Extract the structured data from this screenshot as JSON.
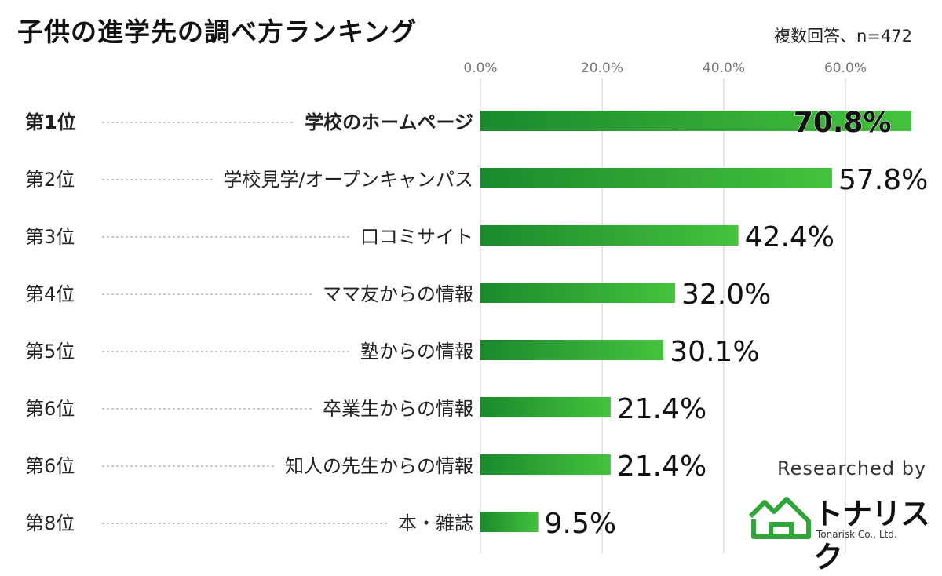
{
  "header": {
    "title": "子供の進学先の調べ方ランキング",
    "note": "複数回答、n=472"
  },
  "chart_data": {
    "type": "bar",
    "orientation": "horizontal",
    "title": "子供の進学先の調べ方ランキング",
    "xlim": [
      0,
      70
    ],
    "x_ticks": [
      "0.0%",
      "20.0%",
      "40.0%",
      "60.0%"
    ],
    "x_tick_values": [
      0,
      20,
      40,
      60
    ],
    "grid": true,
    "ranks": [
      "第1位",
      "第2位",
      "第3位",
      "第4位",
      "第5位",
      "第6位",
      "第6位",
      "第8位"
    ],
    "categories": [
      "学校のホームページ",
      "学校見学/オープンキャンパス",
      "口コミサイト",
      "ママ友からの情報",
      "塾からの情報",
      "卒業生からの情報",
      "知人の先生からの情報",
      "本・雑誌"
    ],
    "values": [
      70.8,
      57.8,
      42.4,
      32.0,
      30.1,
      21.4,
      21.4,
      9.5
    ],
    "value_labels": [
      "70.8%",
      "57.8%",
      "42.4%",
      "32.0%",
      "30.1%",
      "21.4%",
      "21.4%",
      "9.5%"
    ],
    "highlight_index": 0
  },
  "colors": {
    "bar_dark": "#1a8a2c",
    "bar_light": "#45c23d",
    "grid": "#dddddd",
    "leader": "#b5b5b5",
    "logo_green": "#2fa53a"
  },
  "credit": {
    "researched_by": "Researched by",
    "company": "トナリスク",
    "company_sub": "Tonarisk Co., Ltd."
  },
  "icons": {
    "logo": "house-outline-icon"
  }
}
